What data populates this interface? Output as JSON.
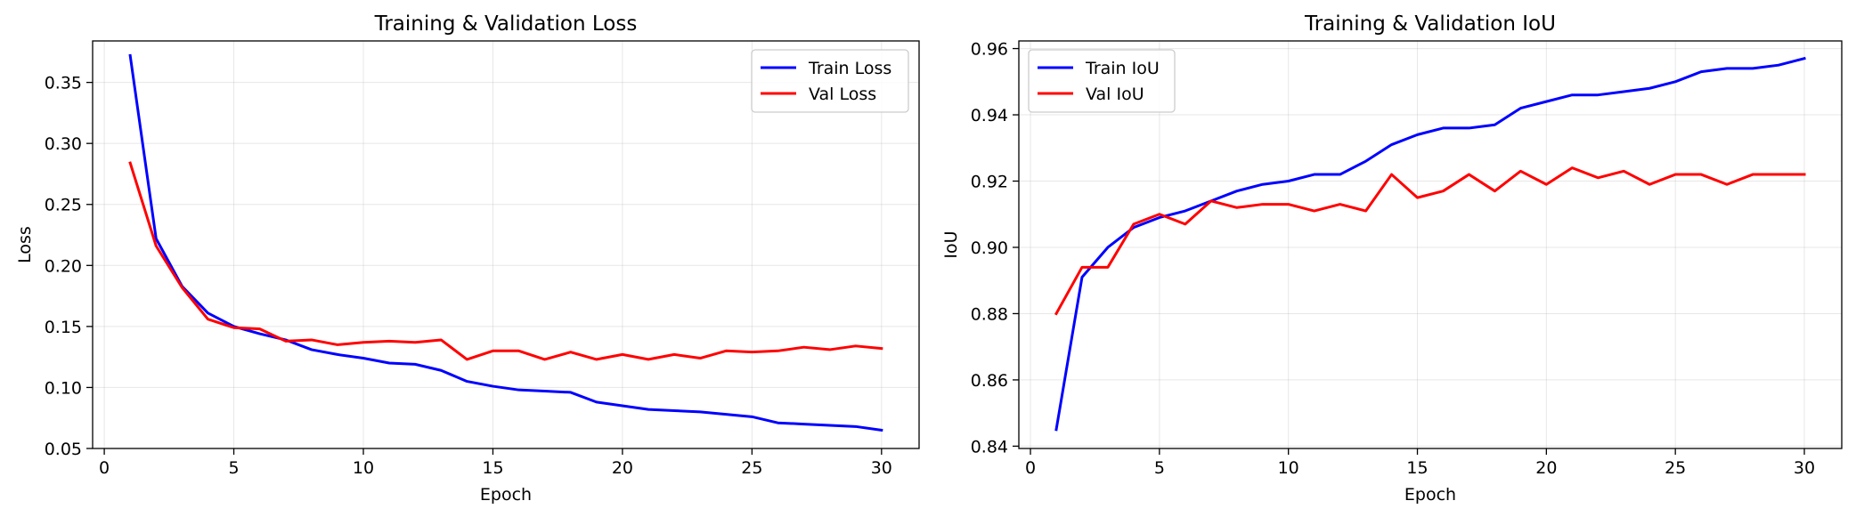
{
  "chart_data": [
    {
      "type": "line",
      "title": "Training & Validation Loss",
      "xlabel": "Epoch",
      "ylabel": "Loss",
      "xlim": [
        -0.45,
        31.45
      ],
      "ylim": [
        0.05,
        0.384
      ],
      "xticks": [
        0,
        5,
        10,
        15,
        20,
        25,
        30
      ],
      "yticks": [
        0.05,
        0.1,
        0.15,
        0.2,
        0.25,
        0.3,
        0.35
      ],
      "yticks_labels": [
        "0.05",
        "0.10",
        "0.15",
        "0.20",
        "0.25",
        "0.30",
        "0.35"
      ],
      "grid": true,
      "legend_position": "upper right",
      "x": [
        1,
        2,
        3,
        4,
        5,
        6,
        7,
        8,
        9,
        10,
        11,
        12,
        13,
        14,
        15,
        16,
        17,
        18,
        19,
        20,
        21,
        22,
        23,
        24,
        25,
        26,
        27,
        28,
        29,
        30
      ],
      "series": [
        {
          "name": "Train Loss",
          "color": "#0000ff",
          "values": [
            0.372,
            0.222,
            0.183,
            0.161,
            0.15,
            0.144,
            0.139,
            0.131,
            0.127,
            0.124,
            0.12,
            0.119,
            0.114,
            0.105,
            0.101,
            0.098,
            0.097,
            0.096,
            0.088,
            0.085,
            0.082,
            0.081,
            0.08,
            0.078,
            0.076,
            0.071,
            0.07,
            0.069,
            0.068,
            0.065
          ]
        },
        {
          "name": "Val Loss",
          "color": "#ff0000",
          "values": [
            0.284,
            0.216,
            0.182,
            0.156,
            0.149,
            0.148,
            0.138,
            0.139,
            0.135,
            0.137,
            0.138,
            0.137,
            0.139,
            0.123,
            0.13,
            0.13,
            0.123,
            0.129,
            0.123,
            0.127,
            0.123,
            0.127,
            0.124,
            0.13,
            0.129,
            0.13,
            0.133,
            0.131,
            0.134,
            0.132
          ]
        }
      ]
    },
    {
      "type": "line",
      "title": "Training & Validation IoU",
      "xlabel": "Epoch",
      "ylabel": "IoU",
      "xlim": [
        -0.45,
        31.45
      ],
      "ylim": [
        0.8393,
        0.9623
      ],
      "xticks": [
        0,
        5,
        10,
        15,
        20,
        25,
        30
      ],
      "yticks": [
        0.84,
        0.86,
        0.88,
        0.9,
        0.92,
        0.94,
        0.96
      ],
      "yticks_labels": [
        "0.84",
        "0.86",
        "0.88",
        "0.90",
        "0.92",
        "0.94",
        "0.96"
      ],
      "grid": true,
      "legend_position": "upper left",
      "x": [
        1,
        2,
        3,
        4,
        5,
        6,
        7,
        8,
        9,
        10,
        11,
        12,
        13,
        14,
        15,
        16,
        17,
        18,
        19,
        20,
        21,
        22,
        23,
        24,
        25,
        26,
        27,
        28,
        29,
        30
      ],
      "series": [
        {
          "name": "Train IoU",
          "color": "#0000ff",
          "values": [
            0.845,
            0.891,
            0.9,
            0.906,
            0.909,
            0.911,
            0.914,
            0.917,
            0.919,
            0.92,
            0.922,
            0.922,
            0.926,
            0.931,
            0.934,
            0.936,
            0.936,
            0.937,
            0.942,
            0.944,
            0.946,
            0.946,
            0.947,
            0.948,
            0.95,
            0.953,
            0.954,
            0.954,
            0.955,
            0.957
          ]
        },
        {
          "name": "Val IoU",
          "color": "#ff0000",
          "values": [
            0.88,
            0.894,
            0.894,
            0.907,
            0.91,
            0.907,
            0.914,
            0.912,
            0.913,
            0.913,
            0.911,
            0.913,
            0.911,
            0.922,
            0.915,
            0.917,
            0.922,
            0.917,
            0.923,
            0.919,
            0.924,
            0.921,
            0.923,
            0.919,
            0.922,
            0.922,
            0.919,
            0.922,
            0.922,
            0.922
          ]
        }
      ]
    }
  ]
}
